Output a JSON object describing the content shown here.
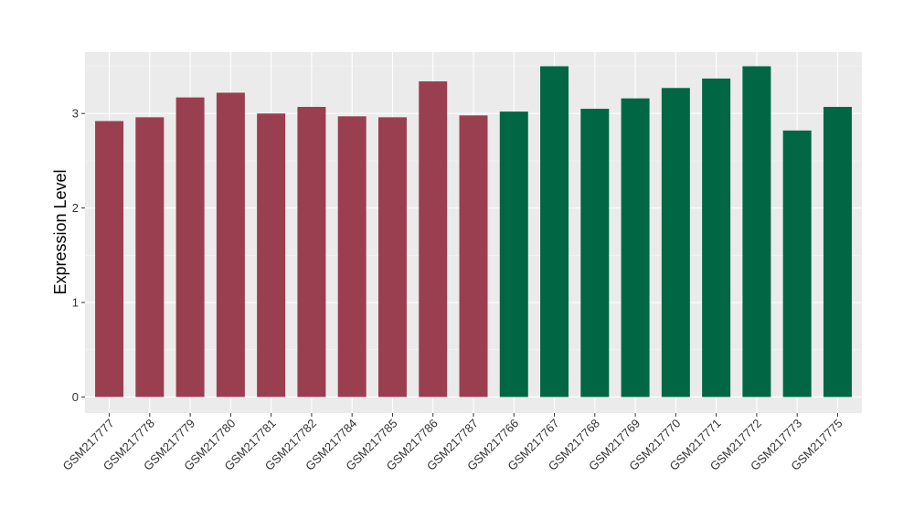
{
  "chart_data": {
    "type": "bar",
    "ylabel": "Expression Level",
    "xlabel": "",
    "ylim": [
      -0.17,
      3.65
    ],
    "yticks": [
      "0",
      "1",
      "2",
      "3"
    ],
    "grid": true,
    "categories": [
      "GSM217777",
      "GSM217778",
      "GSM217779",
      "GSM217780",
      "GSM217781",
      "GSM217782",
      "GSM217784",
      "GSM217785",
      "GSM217786",
      "GSM217787",
      "GSM217766",
      "GSM217767",
      "GSM217768",
      "GSM217769",
      "GSM217770",
      "GSM217771",
      "GSM217772",
      "GSM217773",
      "GSM217775"
    ],
    "values": [
      2.92,
      2.96,
      3.17,
      3.22,
      3.0,
      3.07,
      2.97,
      2.96,
      3.34,
      2.98,
      3.02,
      3.5,
      3.05,
      3.16,
      3.27,
      3.37,
      3.5,
      2.82,
      3.07
    ],
    "groups": [
      "g1",
      "g1",
      "g1",
      "g1",
      "g1",
      "g1",
      "g1",
      "g1",
      "g1",
      "g1",
      "g2",
      "g2",
      "g2",
      "g2",
      "g2",
      "g2",
      "g2",
      "g2",
      "g2"
    ],
    "colors": {
      "g1": "#9a3f4f",
      "g2": "#006644"
    }
  }
}
